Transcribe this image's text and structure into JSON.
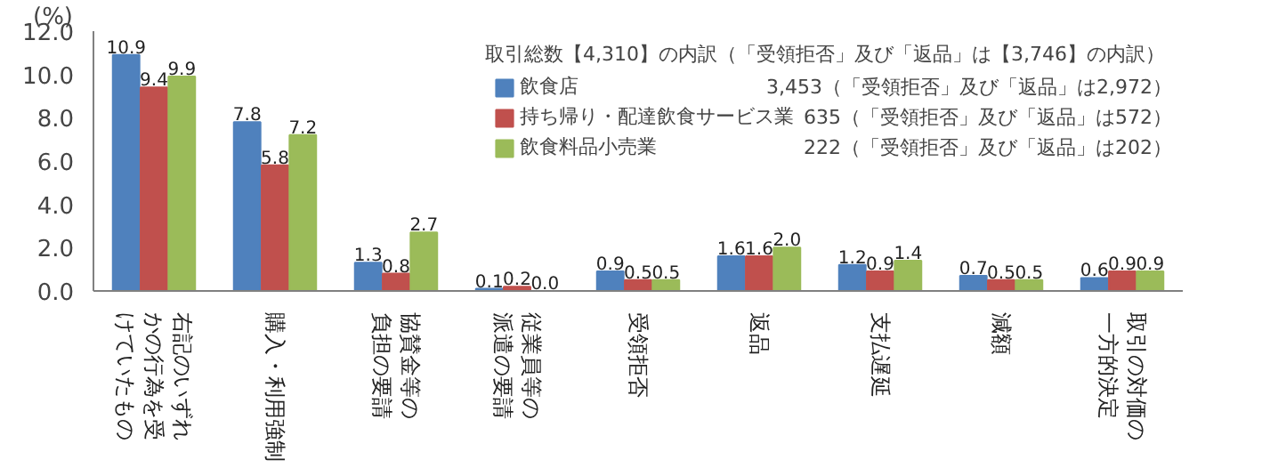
{
  "chart_data": {
    "type": "bar",
    "ylabel": "(%)",
    "legend_title": "取引総数【4,310】の内訳（「受領拒否」及び「返品」は【3,746】の内訳）",
    "categories": [
      "右記のいずれかの行為を受けていたもの",
      "購入・利用強制",
      "協賛金等の負担の要請",
      "従業員等の派遣の要請",
      "受領拒否",
      "返品",
      "支払遅延",
      "減額",
      "取引の対価の一方的決定"
    ],
    "series": [
      {
        "name": "飲食店",
        "color": "#4f81bd",
        "values": [
          10.9,
          7.8,
          1.3,
          0.1,
          0.9,
          1.6,
          1.2,
          0.7,
          0.6
        ],
        "value_labels": [
          "10.9",
          "7.8",
          "1.3",
          "0.1",
          "0.9",
          "1.6",
          "1.2",
          "0.7",
          "0.6"
        ]
      },
      {
        "name": "持ち帰り・配達飲食サービス業",
        "color": "#c0504d",
        "values": [
          9.4,
          5.8,
          0.8,
          0.2,
          0.5,
          1.6,
          0.9,
          0.5,
          0.9
        ],
        "value_labels": [
          "9.4",
          "5.8",
          "0.8",
          "0.2",
          "0.5",
          "1.6",
          "0.9",
          "0.5",
          "0.9"
        ]
      },
      {
        "name": "飲食料品小売業",
        "color": "#9bbb59",
        "values": [
          9.9,
          7.2,
          2.7,
          0.0,
          0.5,
          2.0,
          1.4,
          0.5,
          0.9
        ],
        "value_labels": [
          "9.9",
          "7.2",
          "2.7",
          "0.0",
          "0.5",
          "2.0",
          "1.4",
          "0.5",
          "0.9"
        ]
      }
    ],
    "annotations": [
      "3,453（「受領拒否」及び「返品」は2,972）",
      "635（「受領拒否」及び「返品」は572）",
      "222（「受領拒否」及び「返品」は202）"
    ],
    "ylim": [
      0,
      12
    ],
    "yticks": [
      {
        "value": 0,
        "label": "0.0"
      },
      {
        "value": 2,
        "label": "2.0"
      },
      {
        "value": 4,
        "label": "4.0"
      },
      {
        "value": 6,
        "label": "6.0"
      },
      {
        "value": 8,
        "label": "8.0"
      },
      {
        "value": 10,
        "label": "10.0"
      },
      {
        "value": 12,
        "label": "12.0"
      }
    ],
    "grid": false,
    "legend": "top right"
  }
}
